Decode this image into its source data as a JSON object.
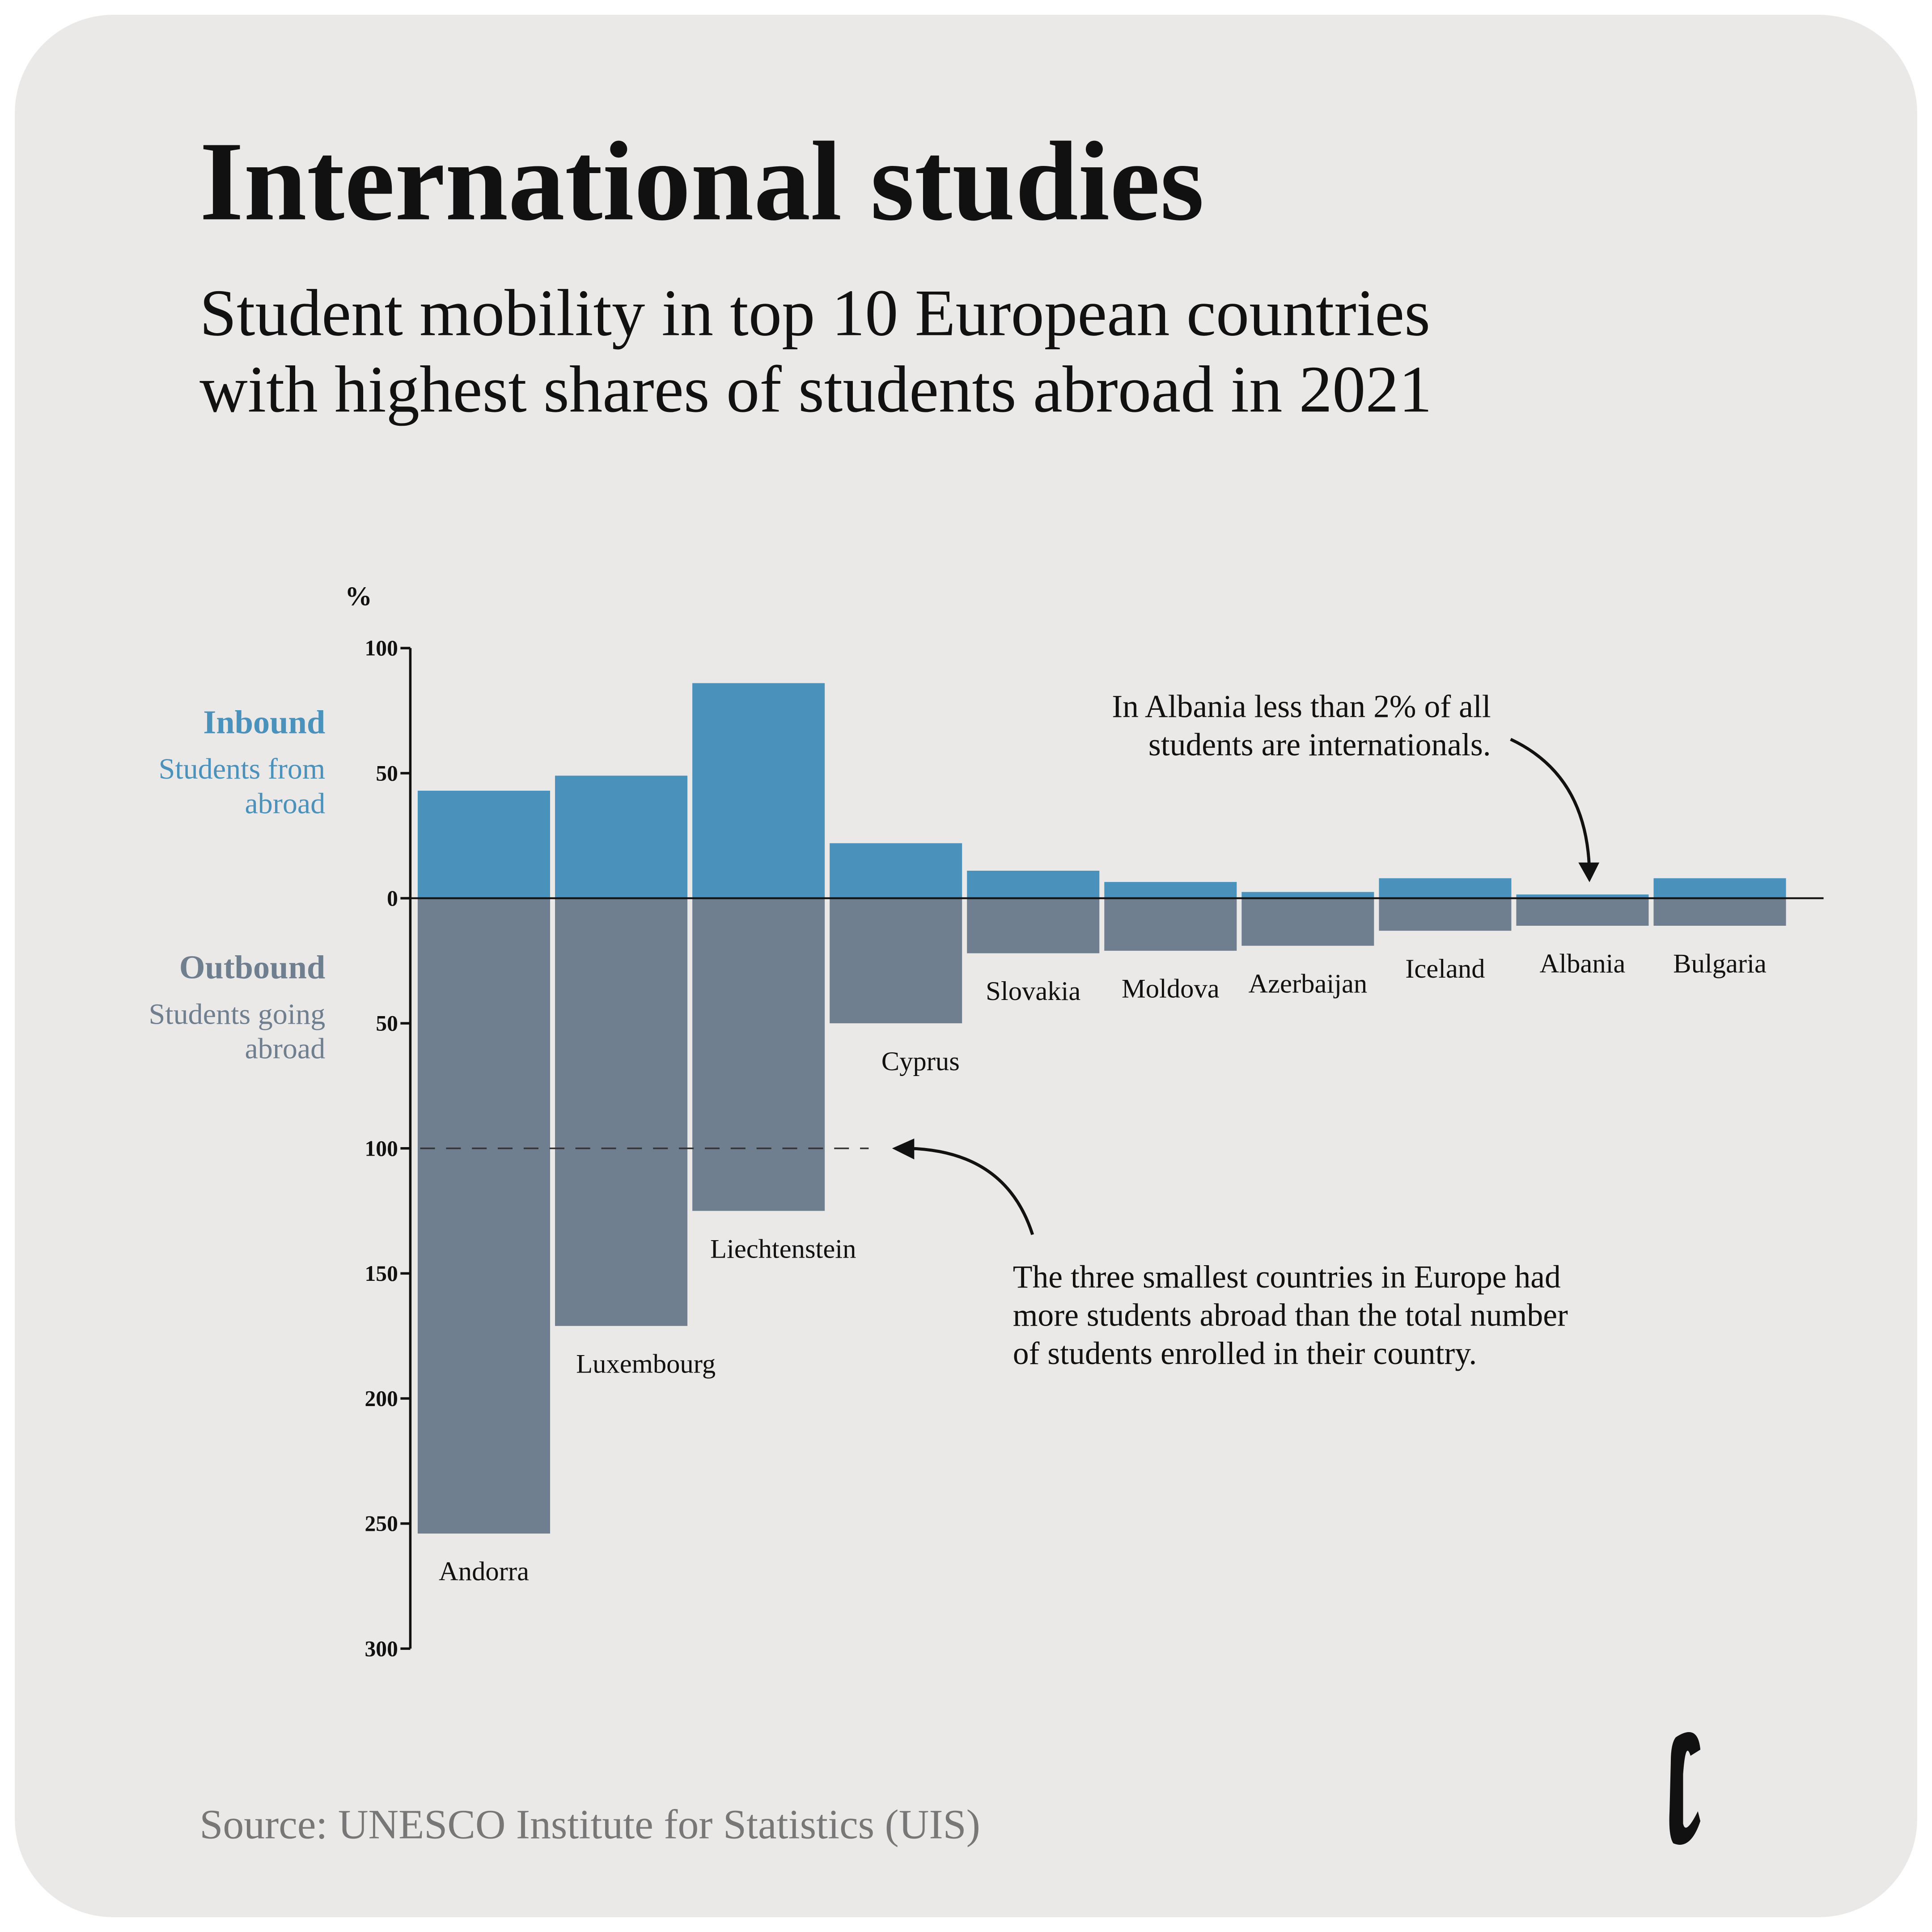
{
  "chart_data": {
    "type": "diverging-bar",
    "title": "International studies",
    "subtitle": [
      "Student mobility in top 10 European countries",
      "with highest shares of students abroad in 2021"
    ],
    "y_label": "%",
    "categories": [
      "Andorra",
      "Luxembourg",
      "Liechtenstein",
      "Cyprus",
      "Slovakia",
      "Moldova",
      "Azerbaijan",
      "Iceland",
      "Albania",
      "Bulgaria"
    ],
    "series": [
      {
        "name": "Inbound",
        "description": [
          "Students from",
          "abroad"
        ],
        "color": "#4a91bb",
        "values": [
          43,
          49,
          86,
          22,
          11,
          6.5,
          2.5,
          8,
          1.5,
          8
        ]
      },
      {
        "name": "Outbound",
        "description": [
          "Students going",
          "abroad"
        ],
        "color": "#6f7f8f",
        "values": [
          -254,
          -171,
          -125,
          -50,
          -22,
          -21,
          -19,
          -13,
          -11,
          -11
        ]
      }
    ],
    "ylim": [
      -300,
      100
    ],
    "yticks": [
      100,
      50,
      0,
      {
        "value": -50,
        "label": "50"
      },
      {
        "value": -100,
        "label": "100"
      },
      {
        "value": -150,
        "label": "150"
      },
      {
        "value": -200,
        "label": "200"
      },
      {
        "value": -250,
        "label": "250"
      },
      {
        "value": -300,
        "label": "300"
      }
    ],
    "reference_line": -100,
    "annotations": [
      {
        "lines": [
          "In Albania less than 2% of all",
          "students are internationals."
        ]
      },
      {
        "lines": [
          "The three smallest countries in Europe had",
          "more students abroad than the total number",
          "of students enrolled in their country."
        ]
      }
    ],
    "source": "Source: UNESCO Institute for Statistics (UIS)"
  }
}
